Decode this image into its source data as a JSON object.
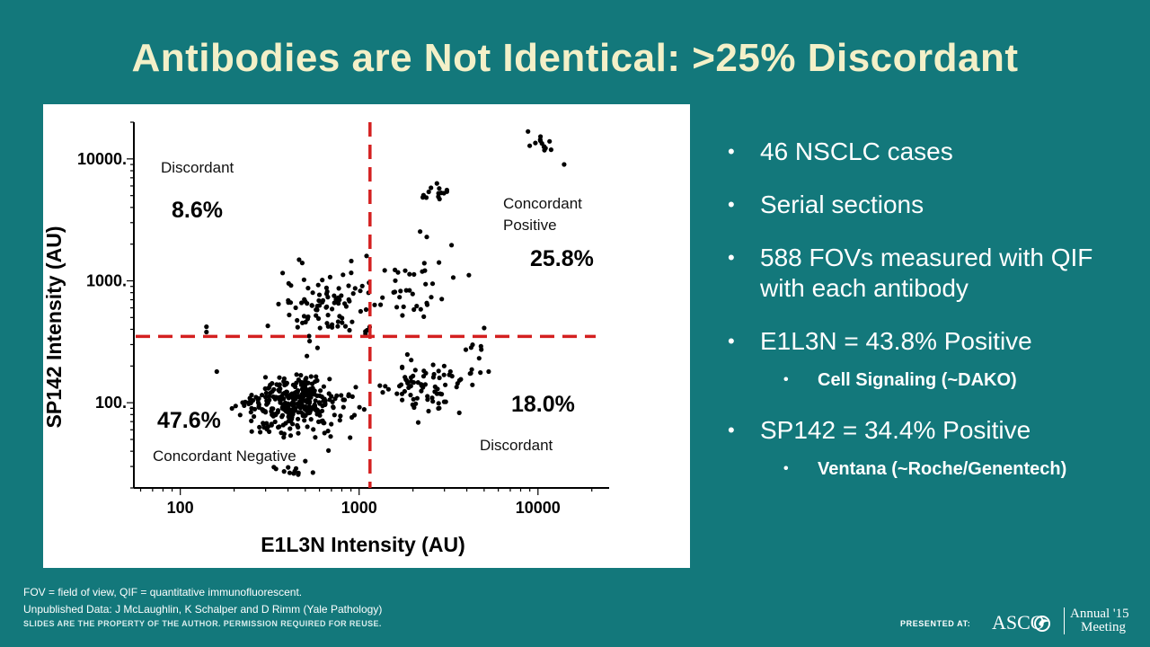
{
  "slide": {
    "title": "Antibodies are Not Identical: >25% Discordant"
  },
  "bullets": [
    {
      "text": "46 NSCLC cases",
      "level": 1
    },
    {
      "text": "Serial sections",
      "level": 1
    },
    {
      "text": "588 FOVs measured with QIF with each antibody",
      "level": 1
    },
    {
      "text": "E1L3N = 43.8% Positive",
      "level": 1
    },
    {
      "text": "Cell Signaling (~DAKO)",
      "level": 2
    },
    {
      "text": "SP142 = 34.4% Positive",
      "level": 1
    },
    {
      "text": "Ventana (~Roche/Genentech)",
      "level": 2
    }
  ],
  "footer": {
    "note1": "FOV = field of view, QIF =  quantitative immunofluorescent.",
    "note2": "Unpublished Data: J McLaughlin, K Schalper and D Rimm  (Yale Pathology)",
    "rights": "SLIDES ARE THE PROPERTY OF THE AUTHOR. PERMISSION REQUIRED FOR REUSE.",
    "presented_at": "PRESENTED AT:",
    "logo_text": "ASCO",
    "meeting_line1": "Annual '15",
    "meeting_line2": "Meeting",
    "logo_icon": "asco-flame-icon"
  },
  "chart_data": {
    "type": "scatter",
    "xlabel": "E1L3N Intensity (AU)",
    "ylabel": "SP142 Intensity (AU)",
    "xscale": "log",
    "yscale": "log",
    "xlim": [
      55,
      25000
    ],
    "ylim": [
      20,
      20000
    ],
    "xticks": [
      100,
      1000,
      10000
    ],
    "yticks": [
      100,
      1000,
      10000
    ],
    "xtick_labels": [
      "100",
      "1000",
      "10000"
    ],
    "ytick_labels": [
      "100.",
      "1000.",
      "10000."
    ],
    "thresholds": {
      "x": 1150,
      "y": 350
    },
    "threshold_color": "#d42020",
    "point_color": "#000000",
    "grid": false,
    "quadrants": [
      {
        "label": "Discordant",
        "percent": "8.6%"
      },
      {
        "label": "Concordant Positive",
        "percent": "25.8%"
      },
      {
        "label": "Concordant Negative",
        "percent": "47.6%"
      },
      {
        "label": "Discordant",
        "percent": "18.0%"
      }
    ],
    "clusters": [
      {
        "x": 440,
        "y": 95,
        "sx": 0.21,
        "sy": 0.16,
        "n": 330
      },
      {
        "x": 640,
        "y": 650,
        "sx": 0.2,
        "sy": 0.28,
        "n": 95
      },
      {
        "x": 2100,
        "y": 140,
        "sx": 0.18,
        "sy": 0.18,
        "n": 75
      },
      {
        "x": 2200,
        "y": 900,
        "sx": 0.22,
        "sy": 0.3,
        "n": 40
      },
      {
        "x": 2700,
        "y": 5200,
        "sx": 0.1,
        "sy": 0.06,
        "n": 14
      },
      {
        "x": 11000,
        "y": 13500,
        "sx": 0.07,
        "sy": 0.07,
        "n": 12
      },
      {
        "x": 420,
        "y": 28,
        "sx": 0.08,
        "sy": 0.04,
        "n": 12
      },
      {
        "x": 4500,
        "y": 230,
        "sx": 0.1,
        "sy": 0.2,
        "n": 8
      }
    ],
    "points": [
      [
        140,
        420
      ],
      [
        140,
        380
      ],
      [
        160,
        180
      ],
      [
        4300,
        140
      ],
      [
        5000,
        410
      ],
      [
        5300,
        180
      ],
      [
        4800,
        290
      ],
      [
        8800,
        16800
      ],
      [
        14000,
        9000
      ],
      [
        1100,
        1600
      ]
    ]
  }
}
